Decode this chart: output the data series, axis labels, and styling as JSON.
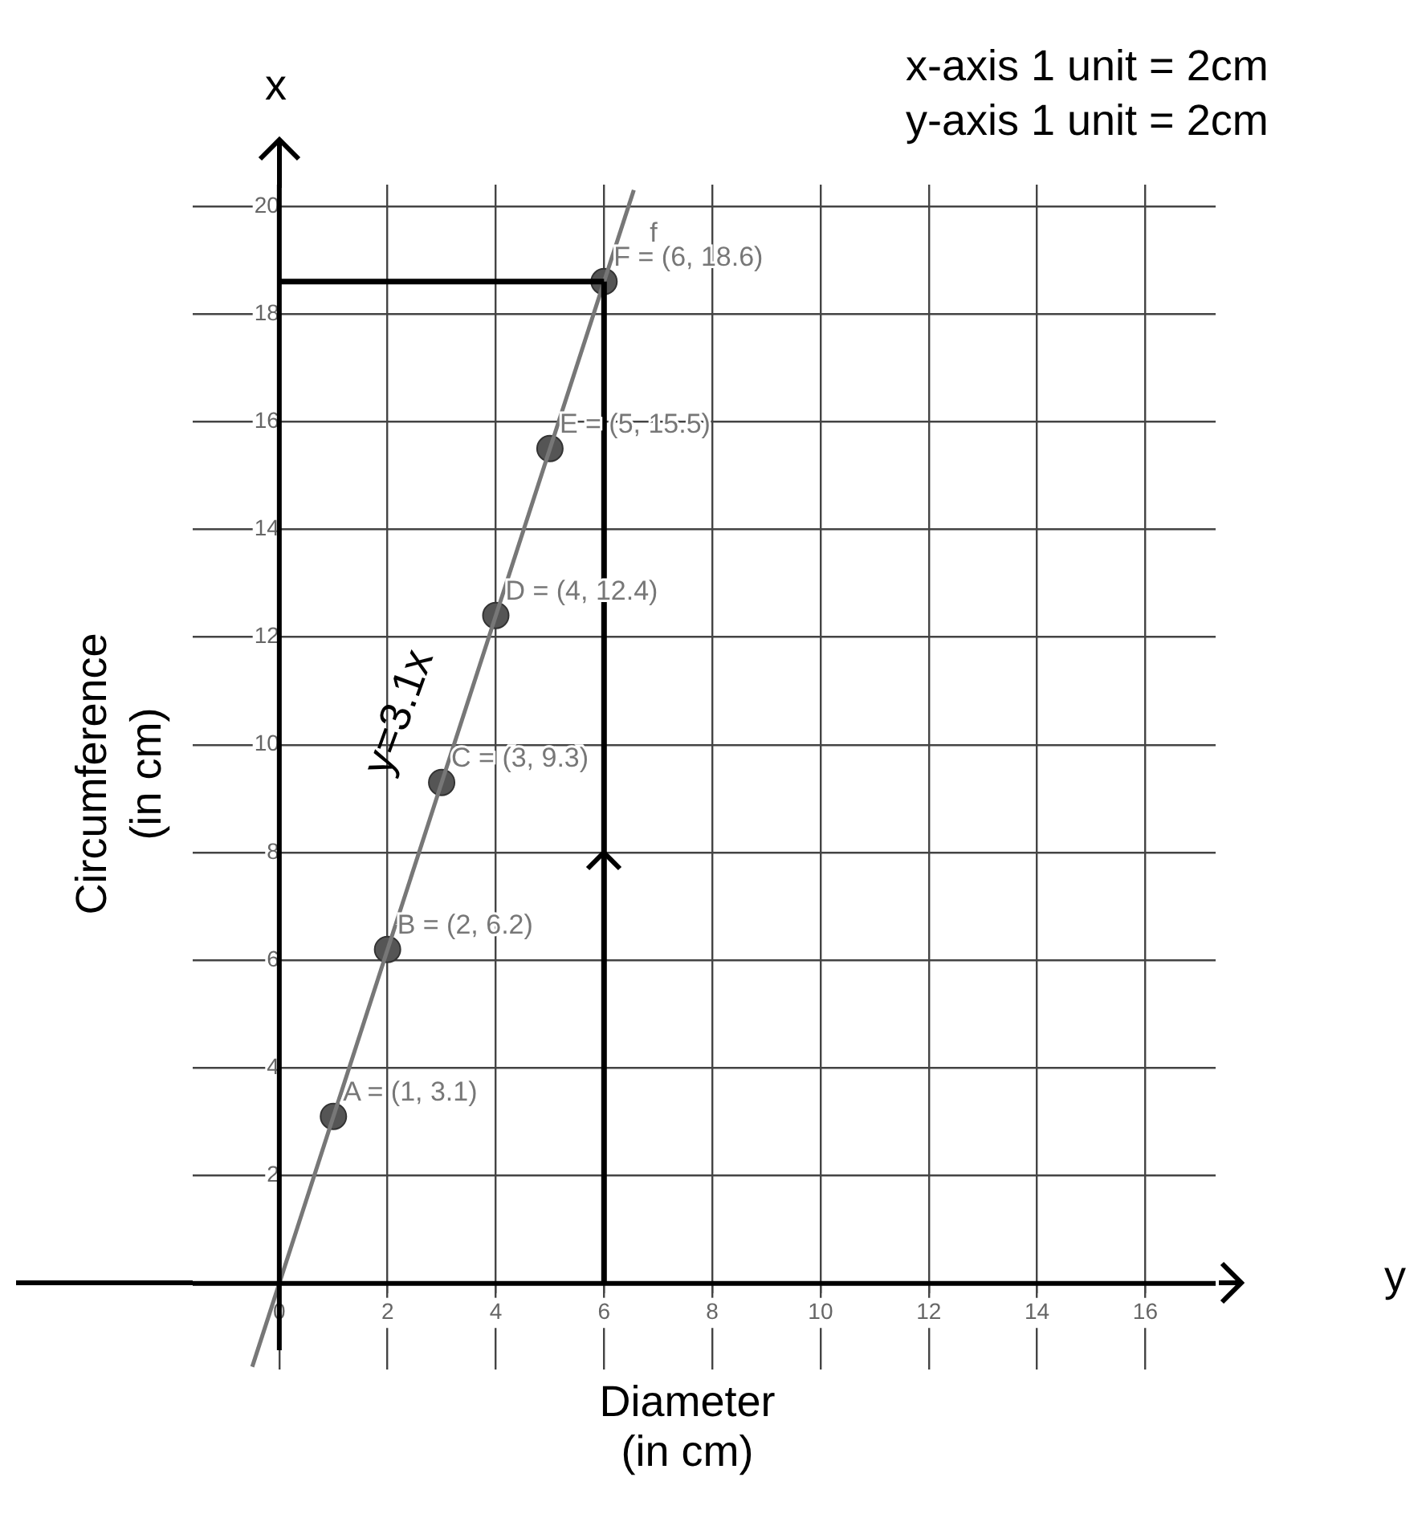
{
  "chart_data": {
    "type": "scatter",
    "xlabel": "Diameter\n(in cm)",
    "ylabel": "Circumference\n(in cm)",
    "xlim": [
      -1.6,
      17.3
    ],
    "ylim": [
      -1.6,
      20.4
    ],
    "xticks": [
      0,
      2,
      4,
      6,
      8,
      10,
      12,
      14,
      16
    ],
    "yticks": [
      2,
      4,
      6,
      8,
      10,
      12,
      14,
      16,
      18,
      20
    ],
    "grid": true,
    "legend": false,
    "series": [
      {
        "name": "f",
        "type": "line",
        "color": "#777777",
        "x": [
          -0.5,
          6.55
        ],
        "values": [
          -1.55,
          20.3
        ]
      },
      {
        "marker": "circle",
        "color": "#555555",
        "x": [
          1,
          2,
          3,
          4,
          5,
          6
        ],
        "values": [
          3.1,
          6.2,
          9.3,
          12.4,
          15.5,
          18.6
        ]
      }
    ],
    "ref_lines": [
      {
        "axis": "y",
        "value": 18.6,
        "color": "#000000"
      },
      {
        "axis": "x",
        "value": 6,
        "color": "#000000"
      }
    ],
    "annotations": [
      "x-axis 1 unit = 2cm",
      "y-axis 1 unit = 2cm",
      "x",
      "y",
      "y=3.1x",
      {
        "text": "A = (1, 3.1)",
        "x": 1,
        "y": 3.1
      },
      {
        "text": "B = (2, 6.2)",
        "x": 2,
        "y": 6.2
      },
      {
        "text": "C = (3, 9.3)",
        "x": 3,
        "y": 9.3
      },
      {
        "text": "D = (4, 12.4)",
        "x": 4,
        "y": 12.4
      },
      {
        "text": "E = (5, 15.5)",
        "x": 5,
        "y": 15.5
      },
      {
        "text": "F = (6, 18.6)",
        "x": 6,
        "y": 18.6
      }
    ]
  }
}
